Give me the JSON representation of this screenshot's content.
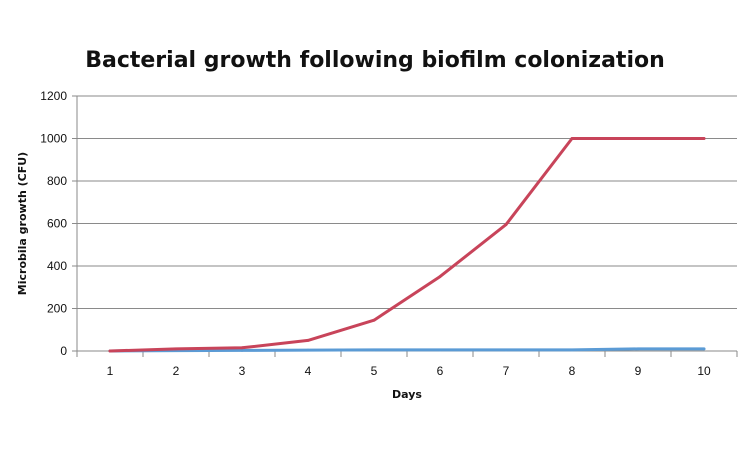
{
  "chart_data": {
    "type": "line",
    "title": "Bacterial growth following biofilm colonization",
    "xlabel": "Days",
    "ylabel": "Microbila growth (CFU)",
    "categories": [
      "1",
      "2",
      "3",
      "4",
      "5",
      "6",
      "7",
      "8",
      "9",
      "10"
    ],
    "ylim": [
      0,
      1200
    ],
    "yticks": [
      "0",
      "200",
      "400",
      "600",
      "800",
      "1000",
      "1200"
    ],
    "grid": true,
    "legend": "none",
    "series": [
      {
        "values": [
          0,
          10,
          15,
          50,
          145,
          350,
          595,
          1000,
          1000,
          1000
        ],
        "color": "#c8445a"
      },
      {
        "values": [
          0,
          2,
          3,
          4,
          5,
          5,
          5,
          5,
          10,
          10
        ],
        "color": "#5b9bd5"
      }
    ]
  }
}
